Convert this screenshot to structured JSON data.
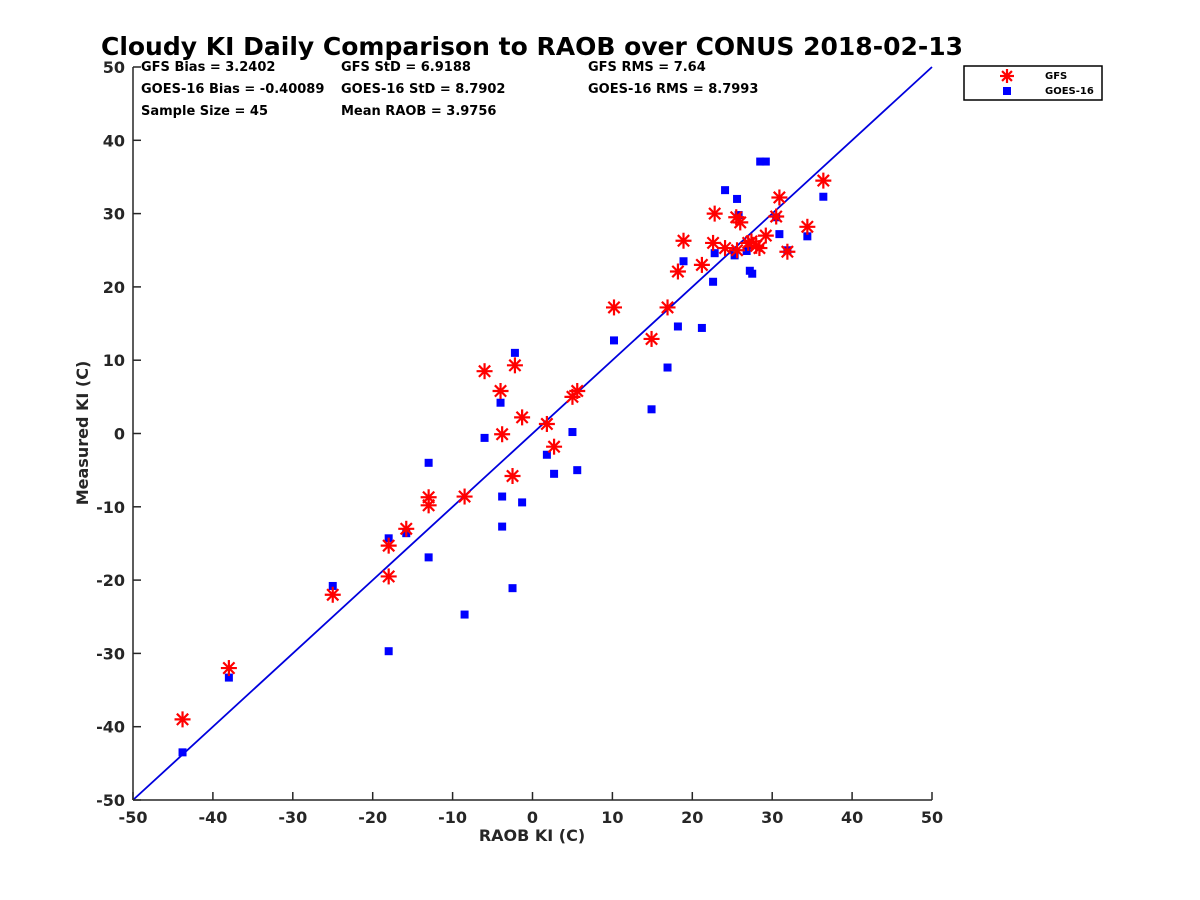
{
  "chart_data": {
    "type": "scatter",
    "title": "Cloudy KI Daily Comparison to RAOB over CONUS 2018-02-13",
    "xlabel": "RAOB KI (C)",
    "ylabel": "Measured KI (C)",
    "xlim": [
      -50,
      50
    ],
    "ylim": [
      -50,
      50
    ],
    "xticks": [
      "-50",
      "-40",
      "-30",
      "-20",
      "-10",
      "0",
      "10",
      "20",
      "30",
      "40",
      "50"
    ],
    "yticks": [
      "50",
      "40",
      "30",
      "20",
      "10",
      "0",
      "-10",
      "-20",
      "-30",
      "-40",
      "-50"
    ],
    "grid": false,
    "legend_position": "top-right",
    "reference_line": {
      "from": [
        -50,
        -50
      ],
      "to": [
        50,
        50
      ],
      "color": "#0000dd"
    },
    "stats": {
      "gfs_bias": "GFS Bias = 3.2402",
      "gfs_std": "GFS StD = 6.9188",
      "gfs_rms": "GFS RMS = 7.64",
      "goes_bias": "GOES-16 Bias = -0.40089",
      "goes_std": "GOES-16 StD = 8.7902",
      "goes_rms": "GOES-16 RMS = 8.7993",
      "sample_size": "Sample Size = 45",
      "mean_raob": "Mean RAOB = 3.9756"
    },
    "series": [
      {
        "name": "GFS",
        "marker": "asterisk",
        "color": "#ff0000",
        "points": [
          [
            -43.8,
            -39
          ],
          [
            -38,
            -32
          ],
          [
            -25,
            -22
          ],
          [
            -18,
            -19.5
          ],
          [
            -18,
            -15.3
          ],
          [
            -15.8,
            -13
          ],
          [
            -13,
            -8.7
          ],
          [
            -13,
            -9.8
          ],
          [
            -8.5,
            -8.6
          ],
          [
            -6,
            8.5
          ],
          [
            -4,
            5.8
          ],
          [
            -3.8,
            -0.1
          ],
          [
            -2.5,
            -5.8
          ],
          [
            -2.2,
            9.3
          ],
          [
            -1.3,
            2.2
          ],
          [
            1.8,
            1.3
          ],
          [
            2.7,
            -1.8
          ],
          [
            5,
            5
          ],
          [
            5.6,
            5.8
          ],
          [
            10.2,
            17.2
          ],
          [
            14.9,
            12.9
          ],
          [
            16.9,
            17.2
          ],
          [
            18.2,
            22.1
          ],
          [
            18.9,
            26.3
          ],
          [
            21.2,
            23
          ],
          [
            22.6,
            26
          ],
          [
            22.8,
            30
          ],
          [
            24.1,
            25.3
          ],
          [
            25.6,
            25
          ],
          [
            25.5,
            29.5
          ],
          [
            26,
            28.8
          ],
          [
            27,
            26
          ],
          [
            27.4,
            26.2
          ],
          [
            28,
            25.6
          ],
          [
            28.4,
            25.3
          ],
          [
            29.2,
            27
          ],
          [
            30.5,
            29.6
          ],
          [
            30.9,
            32.2
          ],
          [
            31.9,
            24.8
          ],
          [
            34.4,
            28.2
          ],
          [
            36.4,
            34.5
          ]
        ]
      },
      {
        "name": "GOES-16",
        "marker": "square",
        "color": "#0000ff",
        "points": [
          [
            -43.8,
            -43.5
          ],
          [
            -38,
            -33.3
          ],
          [
            -25,
            -20.8
          ],
          [
            -18,
            -29.7
          ],
          [
            -18,
            -14.3
          ],
          [
            -15.8,
            -13.6
          ],
          [
            -13,
            -4
          ],
          [
            -13,
            -16.9
          ],
          [
            -8.5,
            -24.7
          ],
          [
            -6,
            -0.6
          ],
          [
            -4,
            4.2
          ],
          [
            -3.8,
            -8.6
          ],
          [
            -3.8,
            -12.7
          ],
          [
            -2.5,
            -21.1
          ],
          [
            -2.2,
            11
          ],
          [
            -1.3,
            -9.4
          ],
          [
            1.8,
            -2.9
          ],
          [
            2.7,
            -5.5
          ],
          [
            5,
            0.2
          ],
          [
            5.6,
            -5
          ],
          [
            10.2,
            12.7
          ],
          [
            14.9,
            3.3
          ],
          [
            16.9,
            9
          ],
          [
            18.2,
            14.6
          ],
          [
            18.9,
            23.5
          ],
          [
            21.2,
            14.4
          ],
          [
            22.6,
            20.7
          ],
          [
            22.8,
            24.6
          ],
          [
            24.1,
            33.2
          ],
          [
            25.3,
            24.3
          ],
          [
            25.6,
            32
          ],
          [
            25.8,
            29.8
          ],
          [
            26.8,
            24.9
          ],
          [
            27.2,
            22.2
          ],
          [
            27.5,
            21.8
          ],
          [
            28.5,
            37.1
          ],
          [
            29.2,
            37.1
          ],
          [
            30.5,
            29.5
          ],
          [
            30.9,
            27.2
          ],
          [
            31.9,
            25
          ],
          [
            34.4,
            26.9
          ],
          [
            36.4,
            32.3
          ]
        ]
      }
    ]
  }
}
